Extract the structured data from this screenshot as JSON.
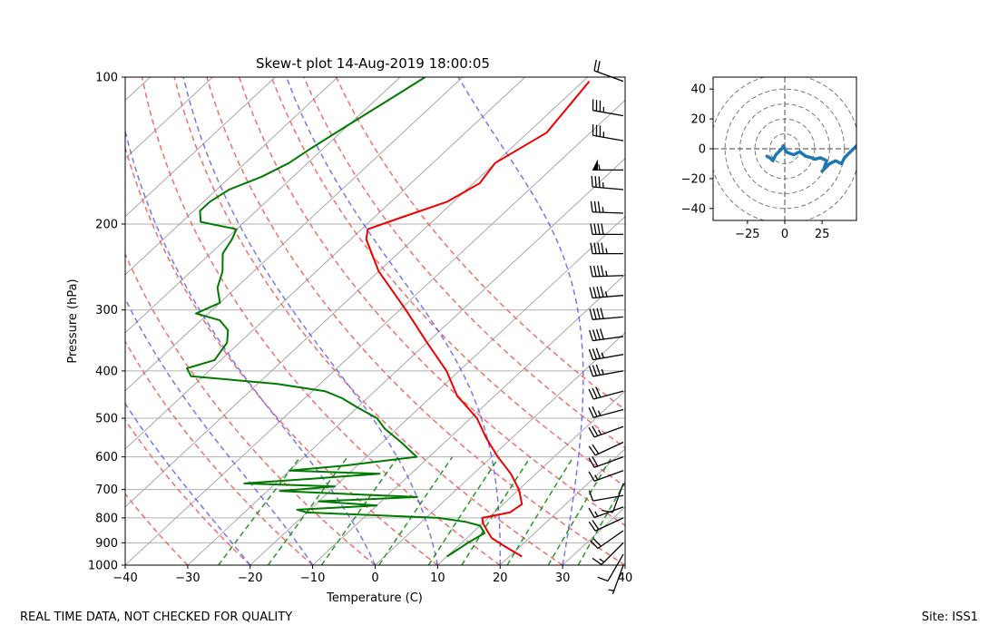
{
  "chart_data": [
    {
      "type": "skewt",
      "title": "Skew-t plot 14-Aug-2019 18:00:05",
      "xlabel": "Temperature (C)",
      "ylabel": "Pressure (hPa)",
      "xlim": [
        -40,
        40
      ],
      "ylim": [
        1000,
        100
      ],
      "x_ticks": [
        -40,
        -30,
        -20,
        -10,
        0,
        10,
        20,
        30,
        40
      ],
      "x_tick_labels": [
        "−40",
        "−30",
        "−20",
        "−10",
        "0",
        "10",
        "20",
        "30",
        "40"
      ],
      "y_ticks": [
        1000,
        900,
        800,
        700,
        600,
        500,
        400,
        300,
        200,
        100
      ],
      "y_tick_labels": [
        "1000",
        "900",
        "800",
        "700",
        "600",
        "500",
        "400",
        "300",
        "200",
        "100"
      ],
      "skew_c_per_decade": 84,
      "dry_adiabats_C": [
        -30,
        -20,
        -10,
        0,
        10,
        20,
        30,
        40,
        50,
        60,
        70,
        80
      ],
      "moist_adiabats_C": [
        -20,
        -10,
        0,
        10,
        20,
        30,
        40
      ],
      "mixing_ratio_lines_gkg": [
        0.5,
        1,
        2,
        4,
        7,
        10,
        16,
        24,
        32
      ],
      "series": [
        {
          "name": "Temperature",
          "color": "#ee0000",
          "profile": [
            {
              "p": 960,
              "t": 22.0
            },
            {
              "p": 940,
              "t": 20.0
            },
            {
              "p": 910,
              "t": 17.0
            },
            {
              "p": 880,
              "t": 14.0
            },
            {
              "p": 850,
              "t": 12.0
            },
            {
              "p": 820,
              "t": 10.0
            },
            {
              "p": 800,
              "t": 9.0
            },
            {
              "p": 780,
              "t": 12.5
            },
            {
              "p": 750,
              "t": 13.0
            },
            {
              "p": 700,
              "t": 10.0
            },
            {
              "p": 650,
              "t": 6.0
            },
            {
              "p": 600,
              "t": 1.0
            },
            {
              "p": 550,
              "t": -4.0
            },
            {
              "p": 500,
              "t": -9.0
            },
            {
              "p": 450,
              "t": -16.0
            },
            {
              "p": 400,
              "t": -22.0
            },
            {
              "p": 350,
              "t": -30.0
            },
            {
              "p": 300,
              "t": -39.0
            },
            {
              "p": 250,
              "t": -50.0
            },
            {
              "p": 215,
              "t": -57.5
            },
            {
              "p": 205,
              "t": -59.0
            },
            {
              "p": 195,
              "t": -56.0
            },
            {
              "p": 180,
              "t": -51.0
            },
            {
              "p": 165,
              "t": -49.0
            },
            {
              "p": 150,
              "t": -50.0
            },
            {
              "p": 130,
              "t": -47.0
            },
            {
              "p": 115,
              "t": -48.0
            },
            {
              "p": 102,
              "t": -49.0
            }
          ]
        },
        {
          "name": "Dewpoint",
          "color": "#007a00",
          "profile": [
            {
              "p": 960,
              "t": 10.0
            },
            {
              "p": 930,
              "t": 10.5
            },
            {
              "p": 900,
              "t": 11.0
            },
            {
              "p": 860,
              "t": 12.0
            },
            {
              "p": 830,
              "t": 10.0
            },
            {
              "p": 815,
              "t": 7.0
            },
            {
              "p": 800,
              "t": 2.0
            },
            {
              "p": 780,
              "t": -20.0
            },
            {
              "p": 770,
              "t": -22.0
            },
            {
              "p": 755,
              "t": -10.0
            },
            {
              "p": 740,
              "t": -20.0
            },
            {
              "p": 725,
              "t": -5.0
            },
            {
              "p": 705,
              "t": -28.0
            },
            {
              "p": 690,
              "t": -20.0
            },
            {
              "p": 680,
              "t": -35.0
            },
            {
              "p": 665,
              "t": -25.0
            },
            {
              "p": 650,
              "t": -15.0
            },
            {
              "p": 640,
              "t": -30.0
            },
            {
              "p": 625,
              "t": -22.0
            },
            {
              "p": 600,
              "t": -12.0
            },
            {
              "p": 560,
              "t": -17.0
            },
            {
              "p": 525,
              "t": -22.0
            },
            {
              "p": 500,
              "t": -25.0
            },
            {
              "p": 475,
              "t": -30.0
            },
            {
              "p": 455,
              "t": -34.0
            },
            {
              "p": 440,
              "t": -38.0
            },
            {
              "p": 425,
              "t": -47.0
            },
            {
              "p": 410,
              "t": -62.0
            },
            {
              "p": 395,
              "t": -64.0
            },
            {
              "p": 380,
              "t": -61.0
            },
            {
              "p": 350,
              "t": -62.0
            },
            {
              "p": 330,
              "t": -64.0
            },
            {
              "p": 315,
              "t": -67.0
            },
            {
              "p": 305,
              "t": -72.0
            },
            {
              "p": 290,
              "t": -70.0
            },
            {
              "p": 270,
              "t": -73.0
            },
            {
              "p": 250,
              "t": -75.0
            },
            {
              "p": 230,
              "t": -78.0
            },
            {
              "p": 215,
              "t": -79.0
            },
            {
              "p": 205,
              "t": -80.0
            },
            {
              "p": 198,
              "t": -87.0
            },
            {
              "p": 188,
              "t": -89.0
            },
            {
              "p": 180,
              "t": -89.0
            },
            {
              "p": 170,
              "t": -88.0
            },
            {
              "p": 160,
              "t": -85.0
            },
            {
              "p": 150,
              "t": -83.0
            },
            {
              "p": 140,
              "t": -82.0
            },
            {
              "p": 125,
              "t": -80.0
            },
            {
              "p": 112,
              "t": -78.0
            },
            {
              "p": 100,
              "t": -76.0
            }
          ]
        }
      ],
      "wind_barbs": [
        {
          "p": 1000,
          "dir_deg": 200,
          "speed_kt": 5
        },
        {
          "p": 950,
          "dir_deg": 210,
          "speed_kt": 10
        },
        {
          "p": 900,
          "dir_deg": 225,
          "speed_kt": 15
        },
        {
          "p": 850,
          "dir_deg": 235,
          "speed_kt": 20
        },
        {
          "p": 800,
          "dir_deg": 245,
          "speed_kt": 20
        },
        {
          "p": 760,
          "dir_deg": 250,
          "speed_kt": 15
        },
        {
          "p": 720,
          "dir_deg": 260,
          "speed_kt": 10
        },
        {
          "p": 680,
          "dir_deg": 200,
          "speed_kt": 10
        },
        {
          "p": 640,
          "dir_deg": 250,
          "speed_kt": 15
        },
        {
          "p": 600,
          "dir_deg": 250,
          "speed_kt": 20
        },
        {
          "p": 560,
          "dir_deg": 245,
          "speed_kt": 20
        },
        {
          "p": 520,
          "dir_deg": 250,
          "speed_kt": 25
        },
        {
          "p": 480,
          "dir_deg": 255,
          "speed_kt": 25
        },
        {
          "p": 440,
          "dir_deg": 255,
          "speed_kt": 30
        },
        {
          "p": 400,
          "dir_deg": 260,
          "speed_kt": 35
        },
        {
          "p": 370,
          "dir_deg": 260,
          "speed_kt": 35
        },
        {
          "p": 340,
          "dir_deg": 262,
          "speed_kt": 40
        },
        {
          "p": 310,
          "dir_deg": 265,
          "speed_kt": 40
        },
        {
          "p": 280,
          "dir_deg": 265,
          "speed_kt": 45
        },
        {
          "p": 255,
          "dir_deg": 268,
          "speed_kt": 45
        },
        {
          "p": 230,
          "dir_deg": 270,
          "speed_kt": 45
        },
        {
          "p": 210,
          "dir_deg": 270,
          "speed_kt": 40
        },
        {
          "p": 190,
          "dir_deg": 272,
          "speed_kt": 35
        },
        {
          "p": 170,
          "dir_deg": 275,
          "speed_kt": 35
        },
        {
          "p": 155,
          "dir_deg": 270,
          "speed_kt": 55
        },
        {
          "p": 135,
          "dir_deg": 280,
          "speed_kt": 35
        },
        {
          "p": 120,
          "dir_deg": 280,
          "speed_kt": 35
        },
        {
          "p": 102,
          "dir_deg": 290,
          "speed_kt": 20
        }
      ]
    },
    {
      "type": "hodograph",
      "xlim": [
        -48,
        48
      ],
      "ylim": [
        -48,
        48
      ],
      "x_ticks": [
        -25,
        0,
        25
      ],
      "x_tick_labels": [
        "−25",
        "0",
        "25"
      ],
      "y_ticks": [
        40,
        20,
        0,
        -20,
        -40
      ],
      "y_tick_labels": [
        "40",
        "20",
        "0",
        "−20",
        "−40"
      ],
      "ring_radii": [
        10,
        20,
        30,
        40,
        50
      ],
      "color": "#1f77b4",
      "u": [
        -12,
        -10,
        -8,
        -6,
        -4,
        -2,
        -1,
        0,
        1,
        3,
        6,
        10,
        14,
        18,
        20,
        24,
        28,
        26,
        25,
        30,
        34,
        38,
        40,
        42,
        44,
        46,
        48
      ],
      "v": [
        -5,
        -6,
        -8,
        -4,
        -2,
        0,
        2,
        0,
        -2,
        -3,
        -4,
        -2,
        -5,
        -6,
        -7,
        -6,
        -8,
        -14,
        -15,
        -10,
        -8,
        -10,
        -6,
        -4,
        -2,
        0,
        2
      ]
    }
  ],
  "footer": {
    "left": "REAL TIME DATA, NOT CHECKED FOR QUALITY",
    "right": "Site: ISS1"
  }
}
